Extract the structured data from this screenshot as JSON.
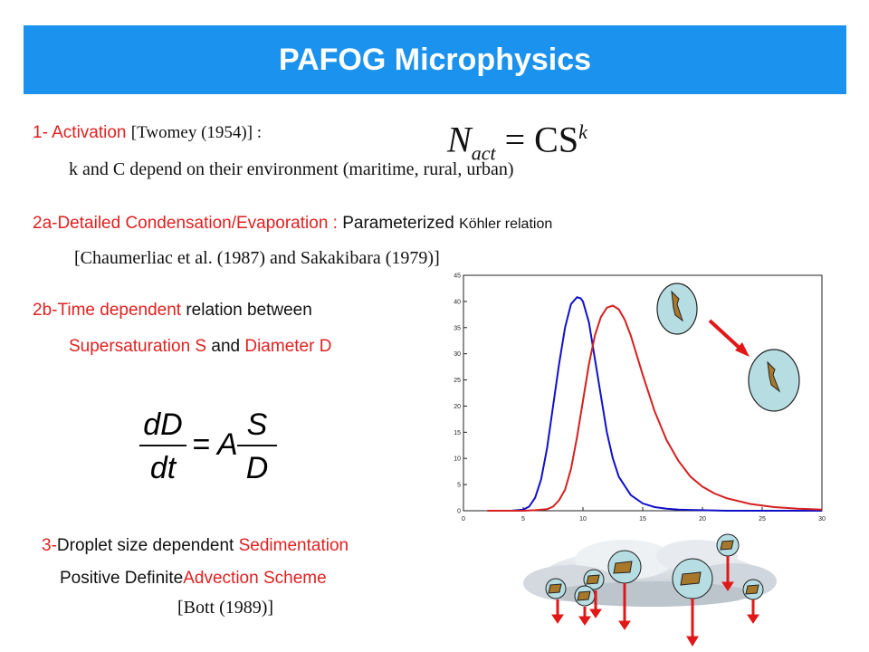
{
  "title": "PAFOG Microphysics",
  "items": {
    "activation": {
      "number": "1- ",
      "label": "Activation",
      "ref": "[Twomey (1954)] :"
    },
    "activation_formula": {
      "lhs": "N",
      "lhs_sub": "act",
      "rhs": "= CS",
      "rhs_sup": "k"
    },
    "activation_note": "k and C depend on their environment (maritime, rural, urban)",
    "condensation": {
      "label": "2a-Detailed Condensation/Evaporation :",
      "text": "Parameterized",
      "text_small": "Köhler relation"
    },
    "condensation_ref": "[Chaumerliac et al. (1987) and Sakakibara (1979)]",
    "time_dependent": {
      "label": "2b-Time dependent",
      "text": "relation between"
    },
    "time_dependent_2": {
      "s_label": "Supersaturation S",
      "and": "and",
      "d_label": "Diameter D"
    },
    "growth_formula": {
      "num_left": "dD",
      "den_left": "dt",
      "eq": "= A",
      "num_right": "S",
      "den_right": "D"
    },
    "sedimentation": {
      "number": "3-",
      "text": "Droplet size dependent",
      "label": "Sedimentation"
    },
    "advection": {
      "text": "Positive Definite",
      "label": "Advection Scheme"
    },
    "advection_ref": "[Bott (1989)]"
  },
  "colors": {
    "banner": "#1b93ee",
    "accent_red": "#e02020",
    "series_blue": "#1010c8",
    "series_red": "#d42020",
    "droplet_fill": "#b6dde2",
    "particle_fill": "#a8782a"
  },
  "chart_data": {
    "type": "line",
    "title": "",
    "xlabel": "",
    "ylabel": "",
    "xlim": [
      0,
      30
    ],
    "ylim": [
      0,
      45
    ],
    "xticks": [
      0,
      5,
      10,
      15,
      20,
      25,
      30
    ],
    "yticks": [
      0,
      5,
      10,
      15,
      20,
      25,
      30,
      35,
      40,
      45
    ],
    "grid": false,
    "series": [
      {
        "color": "#1010c8",
        "x": [
          2,
          4,
          5,
          5.5,
          6,
          6.5,
          7,
          7.5,
          8,
          8.5,
          9,
          9.5,
          9.8,
          10,
          10.5,
          11,
          11.5,
          12,
          12.5,
          13,
          14,
          15,
          16,
          17,
          18,
          20,
          22,
          25,
          30
        ],
        "y": [
          0,
          0,
          0.2,
          0.8,
          2.5,
          6,
          12,
          20,
          28,
          35,
          39.5,
          40.8,
          40.6,
          40,
          36,
          29,
          22,
          15,
          10,
          6.5,
          3,
          1.4,
          0.7,
          0.4,
          0.2,
          0.1,
          0,
          0,
          0
        ]
      },
      {
        "color": "#d42020",
        "x": [
          2,
          5,
          6,
          7,
          7.5,
          8,
          8.5,
          9,
          9.5,
          10,
          10.5,
          11,
          11.5,
          12,
          12.5,
          13,
          13.5,
          14,
          15,
          16,
          17,
          18,
          19,
          20,
          21,
          22,
          24,
          26,
          28,
          30
        ],
        "y": [
          0,
          0,
          0.1,
          0.3,
          0.8,
          2,
          4,
          8,
          14,
          21,
          28,
          33.5,
          37,
          38.8,
          39.2,
          38.5,
          36.5,
          33.5,
          26,
          19,
          13.5,
          9.5,
          6.5,
          4.6,
          3.3,
          2.4,
          1.3,
          0.7,
          0.4,
          0.2
        ]
      }
    ]
  }
}
